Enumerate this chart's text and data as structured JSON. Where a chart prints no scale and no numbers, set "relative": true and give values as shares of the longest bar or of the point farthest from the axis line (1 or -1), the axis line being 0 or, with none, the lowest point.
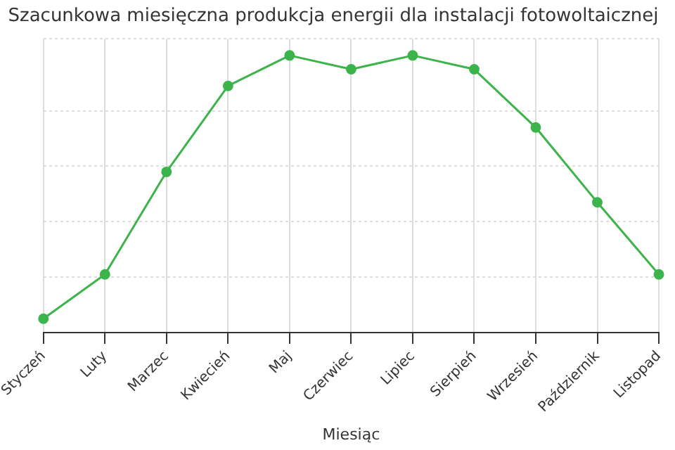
{
  "chart_data": {
    "type": "line",
    "title": "Szacunkowa miesięczna produkcja energii dla instalacji fotowoltaicznej",
    "xlabel": "Miesiąc",
    "categories": [
      "Styczeń",
      "Luty",
      "Marzec",
      "Kwiecień",
      "Maj",
      "Czerwiec",
      "Lipiec",
      "Sierpień",
      "Wrzesień",
      "Październik",
      "Listopad"
    ],
    "relative": true,
    "grid": true,
    "legend": false,
    "marker": "circle",
    "line_style": "solid",
    "series": [
      {
        "color": "#3cb44b",
        "values": [
          0.05,
          0.21,
          0.58,
          0.89,
          1,
          0.95,
          1,
          0.95,
          0.74,
          0.47,
          0.21
        ]
      }
    ]
  }
}
